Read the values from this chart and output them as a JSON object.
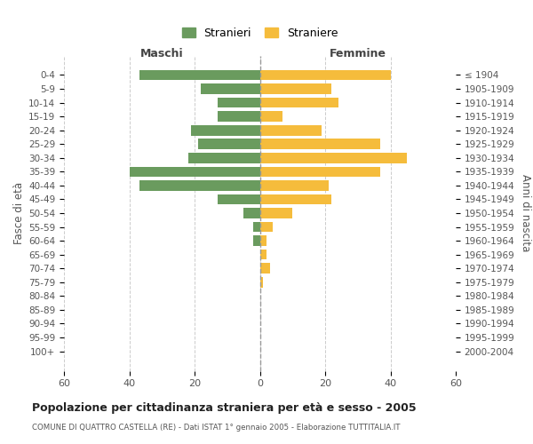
{
  "age_groups": [
    "0-4",
    "5-9",
    "10-14",
    "15-19",
    "20-24",
    "25-29",
    "30-34",
    "35-39",
    "40-44",
    "45-49",
    "50-54",
    "55-59",
    "60-64",
    "65-69",
    "70-74",
    "75-79",
    "80-84",
    "85-89",
    "90-94",
    "95-99",
    "100+"
  ],
  "birth_years": [
    "2000-2004",
    "1995-1999",
    "1990-1994",
    "1985-1989",
    "1980-1984",
    "1975-1979",
    "1970-1974",
    "1965-1969",
    "1960-1964",
    "1955-1959",
    "1950-1954",
    "1945-1949",
    "1940-1944",
    "1935-1939",
    "1930-1934",
    "1925-1929",
    "1920-1924",
    "1915-1919",
    "1910-1914",
    "1905-1909",
    "≤ 1904"
  ],
  "maschi": [
    37,
    18,
    13,
    13,
    21,
    19,
    22,
    40,
    37,
    13,
    5,
    2,
    2,
    0,
    0,
    0,
    0,
    0,
    0,
    0,
    0
  ],
  "femmine": [
    40,
    22,
    24,
    7,
    19,
    37,
    45,
    37,
    21,
    22,
    10,
    4,
    2,
    2,
    3,
    1,
    0,
    0,
    0,
    0,
    0
  ],
  "color_maschi": "#6a9b5e",
  "color_femmine": "#f5bc3c",
  "title": "Popolazione per cittadinanza straniera per età e sesso - 2005",
  "subtitle": "COMUNE DI QUATTRO CASTELLA (RE) - Dati ISTAT 1° gennaio 2005 - Elaborazione TUTTITALIA.IT",
  "xlabel_left": "Maschi",
  "xlabel_right": "Femmine",
  "ylabel_left": "Fasce di età",
  "ylabel_right": "Anni di nascita",
  "legend_maschi": "Stranieri",
  "legend_femmine": "Straniere",
  "xlim": 60,
  "bg_color": "#ffffff",
  "grid_color": "#cccccc"
}
